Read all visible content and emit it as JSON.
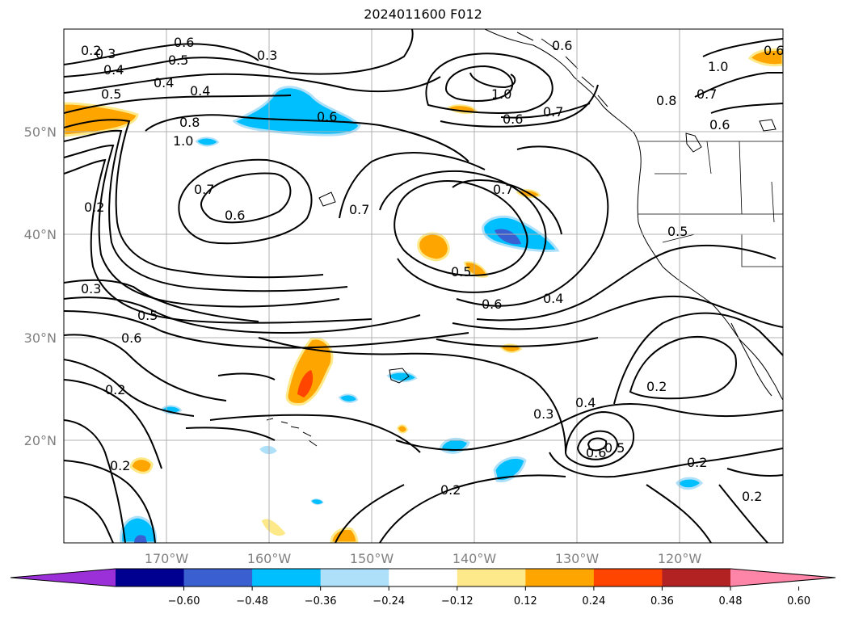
{
  "title": "2024011600 F012",
  "map": {
    "lon_labels": [
      "170°W",
      "160°W",
      "150°W",
      "140°W",
      "130°W",
      "120°W"
    ],
    "lat_labels": [
      "50°N",
      "40°N",
      "30°N",
      "20°N"
    ],
    "contour_labels": [
      "0.2",
      "0.3",
      "0.4",
      "0.5",
      "0.6",
      "0.3",
      "0.4",
      "0.4",
      "0.5",
      "0.8",
      "1.0",
      "0.6",
      "0.7",
      "0.6",
      "0.7",
      "0.2",
      "0.3",
      "0.5",
      "0.6",
      "0.2",
      "0.2",
      "0.6",
      "1.0",
      "0.7",
      "0.6",
      "0.7",
      "0.5",
      "0.6",
      "0.4",
      "0.2",
      "0.3",
      "0.4",
      "0.5",
      "0.6",
      "0.2",
      "0.2",
      "0.6",
      "1.0",
      "0.8",
      "0.7",
      "0.6",
      "0.5",
      "0.2"
    ]
  },
  "colorbar": {
    "colors": [
      "#9b30d9",
      "#000090",
      "#3a5fd0",
      "#00bfff",
      "#aee0fa",
      "#ffffff",
      "#fde98a",
      "#ffa500",
      "#ff4500",
      "#b22222",
      "#ff85a8"
    ],
    "tick_labels": [
      "−0.60",
      "−0.48",
      "−0.36",
      "−0.24",
      "−0.12",
      "0.12",
      "0.24",
      "0.36",
      "0.48",
      "0.60"
    ]
  },
  "colors": {
    "frame": "#000000",
    "grid": "#b0b0b0",
    "contour": "#000000"
  }
}
